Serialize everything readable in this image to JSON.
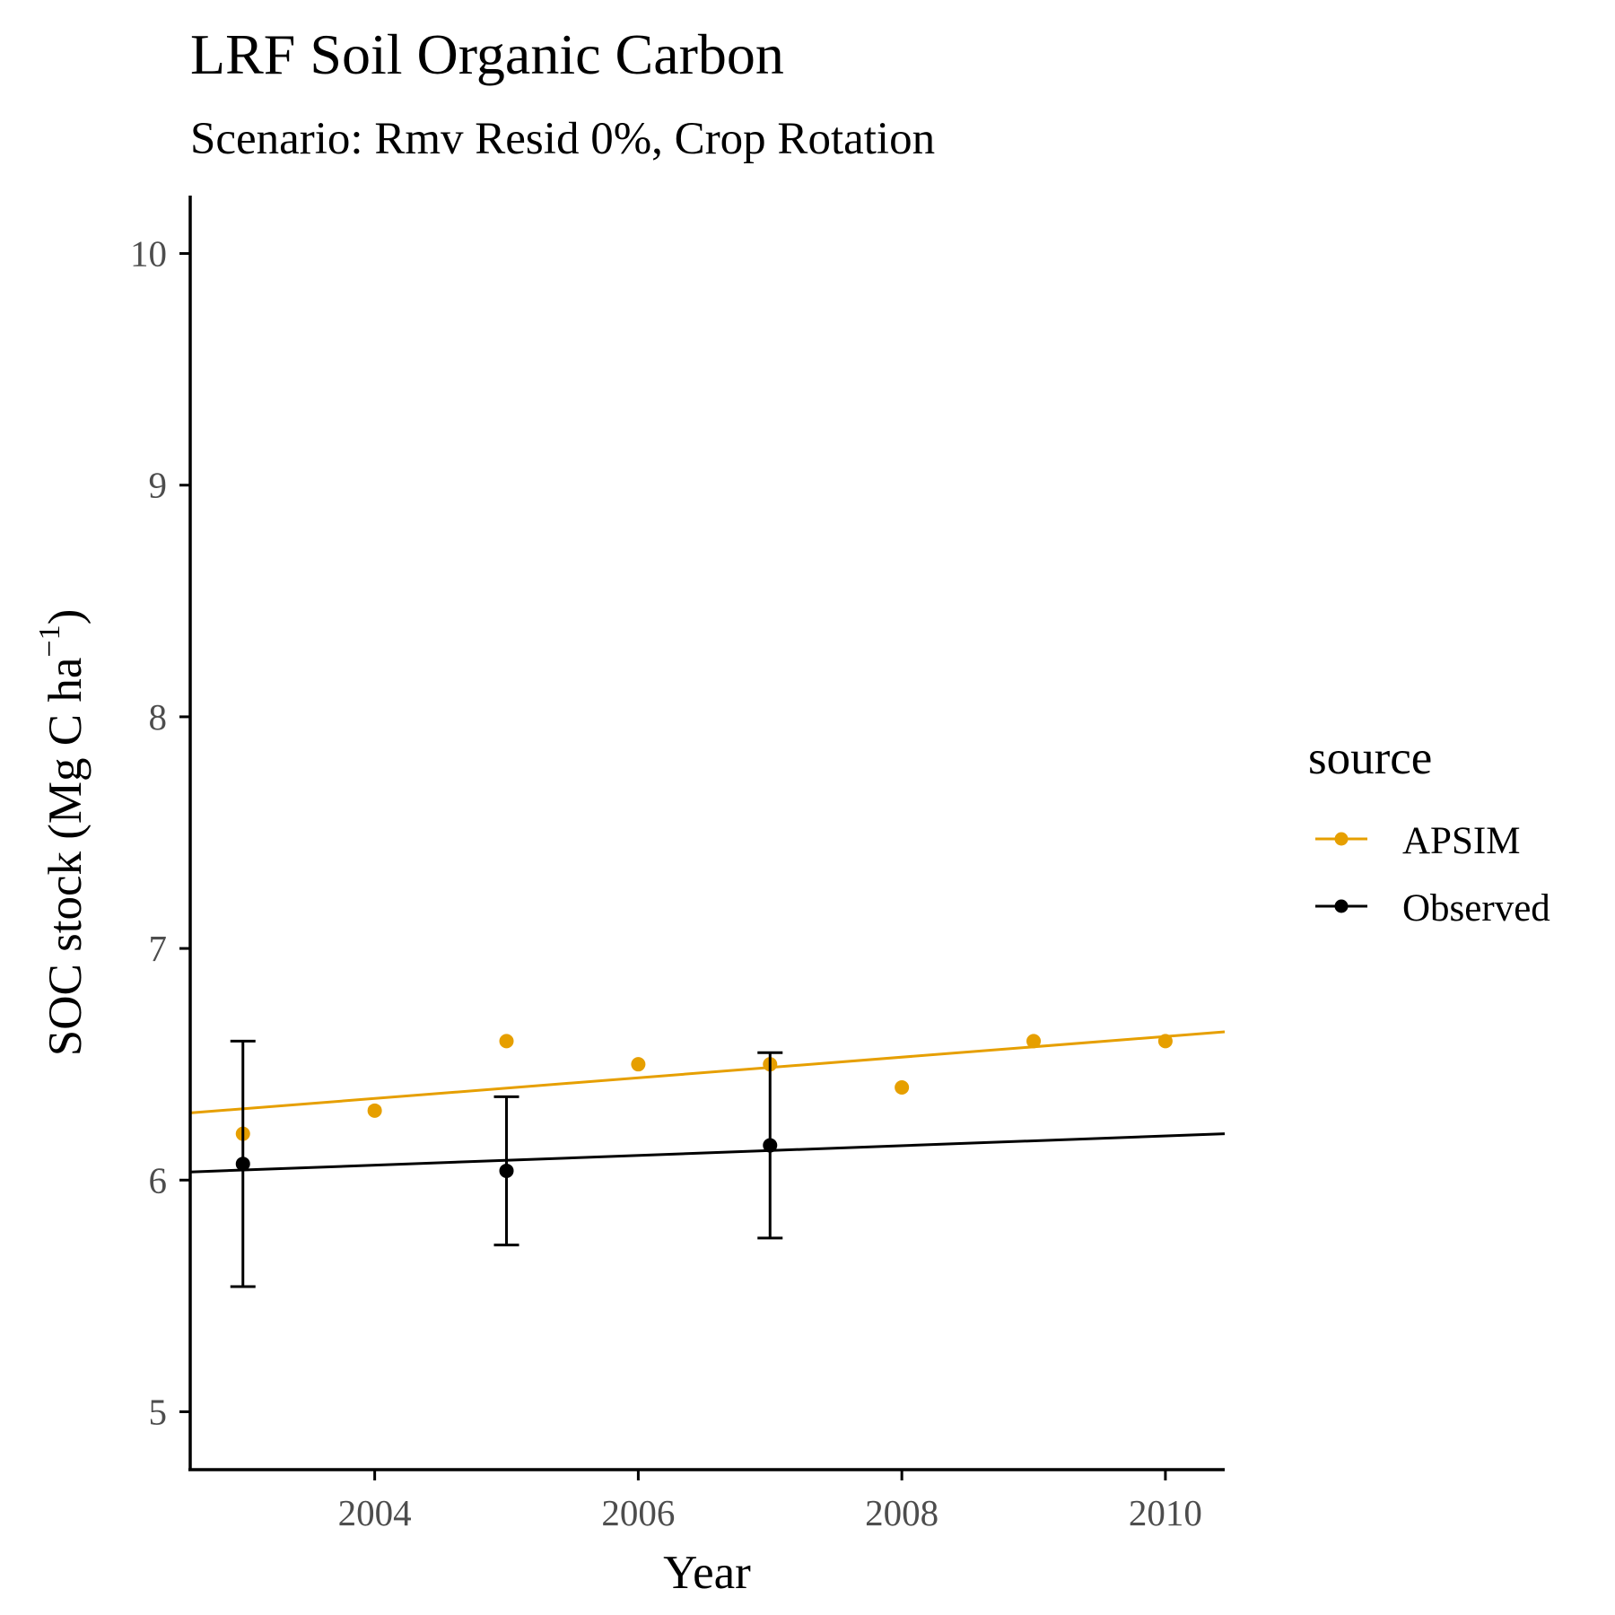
{
  "chart_data": {
    "type": "scatter",
    "title": "LRF Soil Organic Carbon",
    "subtitle": "Scenario: Rmv Resid 0%, Crop Rotation",
    "xlabel": "Year",
    "ylabel_main": "SOC stock (Mg C ha",
    "ylabel_sup": "−1",
    "ylabel_close": ")",
    "xlim": [
      2002.6,
      2010.45
    ],
    "ylim": [
      4.75,
      10.25
    ],
    "x_ticks": [
      2004,
      2006,
      2008,
      2010
    ],
    "y_ticks": [
      5,
      6,
      7,
      8,
      9,
      10
    ],
    "x_tick_labels": [
      "2004",
      "2006",
      "2008",
      "2010"
    ],
    "y_tick_labels": [
      "5",
      "6",
      "7",
      "8",
      "9",
      "10"
    ],
    "grid": false,
    "legend": {
      "title": "source",
      "position": "right",
      "entries": [
        "APSIM",
        "Observed"
      ]
    },
    "series": [
      {
        "name": "APSIM",
        "color": "#E69F00",
        "points": [
          {
            "x": 2003,
            "y": 6.2
          },
          {
            "x": 2004,
            "y": 6.3
          },
          {
            "x": 2005,
            "y": 6.6
          },
          {
            "x": 2006,
            "y": 6.5
          },
          {
            "x": 2007,
            "y": 6.5
          },
          {
            "x": 2008,
            "y": 6.4
          },
          {
            "x": 2009,
            "y": 6.6
          },
          {
            "x": 2010,
            "y": 6.6
          }
        ],
        "trend": {
          "x_start": 2002.6,
          "y_start": 6.29,
          "x_end": 2010.45,
          "y_end": 6.64
        }
      },
      {
        "name": "Observed",
        "color": "#000000",
        "points": [
          {
            "x": 2003,
            "y": 6.07,
            "ymin": 5.54,
            "ymax": 6.6
          },
          {
            "x": 2005,
            "y": 6.04,
            "ymin": 5.72,
            "ymax": 6.36
          },
          {
            "x": 2007,
            "y": 6.15,
            "ymin": 5.75,
            "ymax": 6.55
          }
        ],
        "trend": {
          "x_start": 2002.6,
          "y_start": 6.035,
          "x_end": 2010.45,
          "y_end": 6.2
        }
      }
    ]
  }
}
